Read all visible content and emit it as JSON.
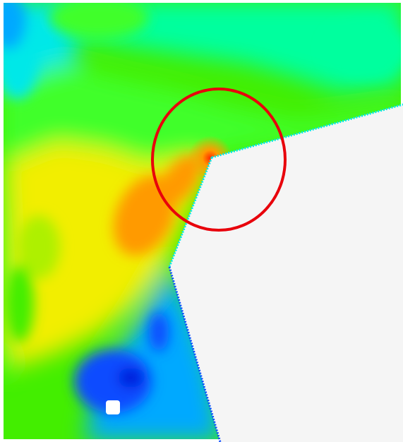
{
  "figure": {
    "colors": {
      "background": "#ffffff",
      "solid_region": "#f5f5f5",
      "highlight_circle": "#e8000b",
      "stress_red": "#ff2a00",
      "stress_orange": "#ff9a00",
      "stress_yellow": "#f2ee00",
      "stress_yellow_green": "#aef000",
      "stress_green": "#43ee00",
      "stress_light_green": "#3fff2a",
      "stress_cyan_green": "#00ff9e",
      "stress_cyan": "#00e8e8",
      "stress_sky": "#00a9ff",
      "stress_blue": "#0a4bff",
      "stress_dark_blue": "#0018d8"
    }
  }
}
